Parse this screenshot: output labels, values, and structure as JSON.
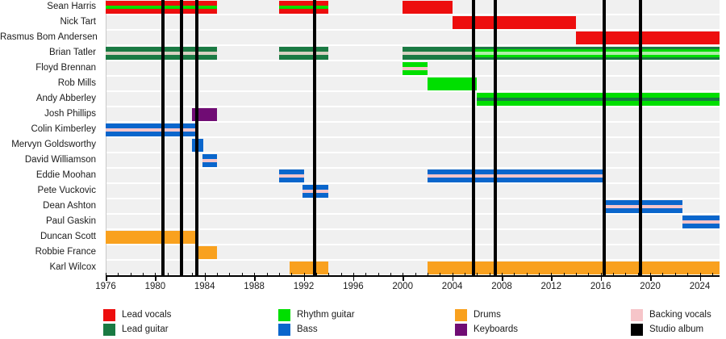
{
  "chart_data": {
    "type": "timeline",
    "x_axis": {
      "start": 1976,
      "end": 2025.6,
      "major_ticks": [
        1976,
        1980,
        1984,
        1988,
        1992,
        1996,
        2000,
        2004,
        2008,
        2012,
        2016,
        2020,
        2024
      ],
      "minor_tick_interval": 1
    },
    "colors": {
      "lead_vocals": "#ED0E0E",
      "lead_guitar": "#1A7A43",
      "rhythm_guitar": "#00DF00",
      "bass": "#0A66CC",
      "drums": "#F9A11E",
      "keyboards": "#700C74",
      "backing_vocals": "#F6C5C9",
      "studio_album": "#000000",
      "backing_vocals_on_green": "#D8D2C2",
      "rhythm_guitar_light": "#AEEFA8",
      "row_background": "#F0F0F0"
    },
    "albums": {
      "label": "Studio album",
      "years": [
        1980.6,
        1982.1,
        1983.35,
        1992.9,
        2005.75,
        2007.5,
        2016.25,
        2019.2
      ]
    },
    "members": [
      {
        "name": "Sean Harris",
        "segments": [
          {
            "from": 1976,
            "to": 1985,
            "role": "lead_vocals",
            "stripe": "rhythm_guitar"
          },
          {
            "from": 1990,
            "to": 1994,
            "role": "lead_vocals",
            "stripe": "rhythm_guitar"
          },
          {
            "from": 2000,
            "to": 2004,
            "role": "lead_vocals"
          }
        ]
      },
      {
        "name": "Nick Tart",
        "segments": [
          {
            "from": 2004,
            "to": 2014,
            "role": "lead_vocals"
          }
        ]
      },
      {
        "name": "Rasmus Bom Andersen",
        "segments": [
          {
            "from": 2014,
            "to": 2025.6,
            "role": "lead_vocals"
          }
        ]
      },
      {
        "name": "Brian Tatler",
        "segments": [
          {
            "from": 1976,
            "to": 1985,
            "role": "lead_guitar",
            "stripe": "backing_vocals_on_green"
          },
          {
            "from": 1990,
            "to": 1994,
            "role": "lead_guitar",
            "stripe": "backing_vocals_on_green"
          },
          {
            "from": 2000,
            "to": 2025.6,
            "role": "lead_guitar",
            "stripe": "backing_vocals_on_green"
          },
          {
            "from": 2005.8,
            "to": 2025.6,
            "role": "rhythm_guitar",
            "stripe": "rhythm_guitar_light",
            "overlay": true
          }
        ]
      },
      {
        "name": "Floyd Brennan",
        "segments": [
          {
            "from": 2000,
            "to": 2002,
            "role": "rhythm_guitar",
            "stripe": "backing_vocals"
          }
        ]
      },
      {
        "name": "Rob Mills",
        "segments": [
          {
            "from": 2002,
            "to": 2006,
            "role": "rhythm_guitar"
          }
        ]
      },
      {
        "name": "Andy Abberley",
        "segments": [
          {
            "from": 2006,
            "to": 2025.6,
            "role": "rhythm_guitar",
            "stripe": "lead_guitar"
          }
        ]
      },
      {
        "name": "Josh Phillips",
        "segments": [
          {
            "from": 1983,
            "to": 1985,
            "role": "keyboards"
          }
        ]
      },
      {
        "name": "Colin Kimberley",
        "segments": [
          {
            "from": 1976,
            "to": 1983.2,
            "role": "bass",
            "stripe": "backing_vocals"
          }
        ]
      },
      {
        "name": "Mervyn Goldsworthy",
        "segments": [
          {
            "from": 1983,
            "to": 1983.9,
            "role": "bass"
          }
        ]
      },
      {
        "name": "David Williamson",
        "segments": [
          {
            "from": 1983.85,
            "to": 1985,
            "role": "bass",
            "stripe": "backing_vocals"
          }
        ]
      },
      {
        "name": "Eddie Moohan",
        "segments": [
          {
            "from": 1990,
            "to": 1992.05,
            "role": "bass",
            "stripe": "backing_vocals"
          },
          {
            "from": 2002,
            "to": 2016.35,
            "role": "bass",
            "stripe": "backing_vocals"
          }
        ]
      },
      {
        "name": "Pete Vuckovic",
        "segments": [
          {
            "from": 1991.9,
            "to": 1994,
            "role": "bass",
            "stripe": "backing_vocals"
          }
        ]
      },
      {
        "name": "Dean Ashton",
        "segments": [
          {
            "from": 2016.35,
            "to": 2022.6,
            "role": "bass",
            "stripe": "backing_vocals"
          }
        ]
      },
      {
        "name": "Paul Gaskin",
        "segments": [
          {
            "from": 2022.6,
            "to": 2025.6,
            "role": "bass",
            "stripe": "backing_vocals"
          }
        ]
      },
      {
        "name": "Duncan Scott",
        "segments": [
          {
            "from": 1976,
            "to": 1983.35,
            "role": "drums"
          }
        ]
      },
      {
        "name": "Robbie France",
        "segments": [
          {
            "from": 1983.35,
            "to": 1985,
            "role": "drums"
          }
        ]
      },
      {
        "name": "Karl Wilcox",
        "segments": [
          {
            "from": 1990.85,
            "to": 1994,
            "role": "drums"
          },
          {
            "from": 2002,
            "to": 2025.6,
            "role": "drums"
          }
        ]
      }
    ],
    "legend": {
      "items": [
        {
          "label": "Lead vocals",
          "color_key": "lead_vocals"
        },
        {
          "label": "Lead guitar",
          "color_key": "lead_guitar"
        },
        {
          "label": "Rhythm guitar",
          "color_key": "rhythm_guitar"
        },
        {
          "label": "Bass",
          "color_key": "bass"
        },
        {
          "label": "Drums",
          "color_key": "drums"
        },
        {
          "label": "Keyboards",
          "color_key": "keyboards"
        },
        {
          "label": "Backing vocals",
          "color_key": "backing_vocals"
        },
        {
          "label": "Studio album",
          "color_key": "studio_album"
        }
      ]
    }
  }
}
